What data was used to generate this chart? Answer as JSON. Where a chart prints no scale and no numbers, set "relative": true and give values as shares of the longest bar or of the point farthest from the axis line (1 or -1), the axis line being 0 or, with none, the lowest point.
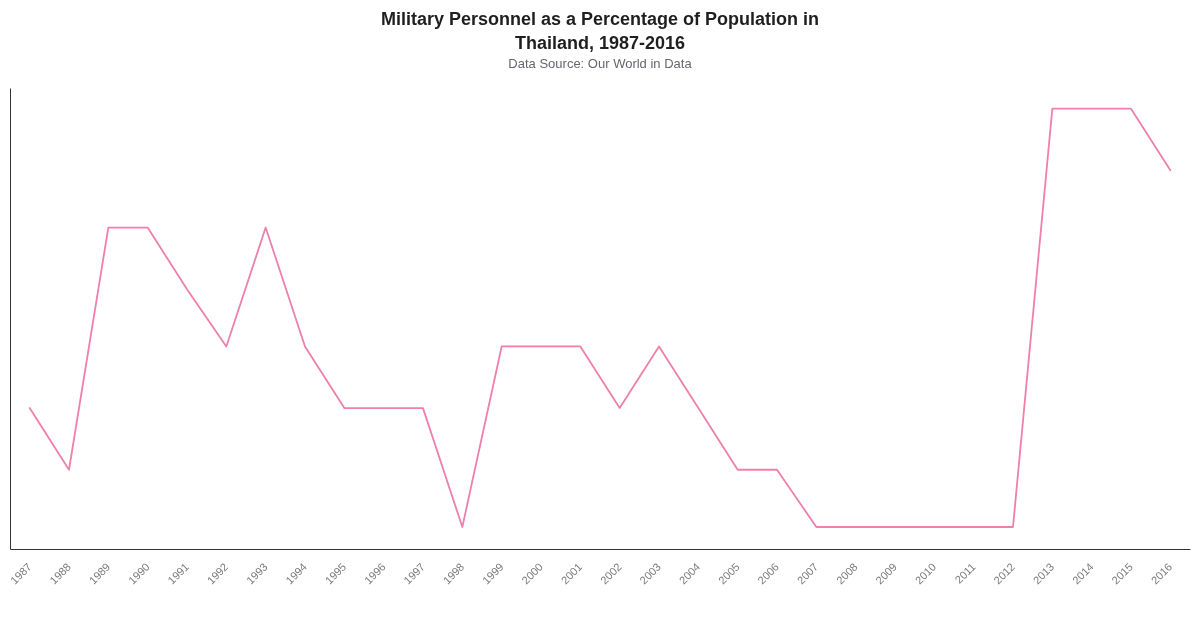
{
  "chart_data": {
    "type": "line",
    "title": "Military Personnel as a Percentage of Population in Thailand, 1987-2016",
    "subtitle": "Data Source: Our World in Data",
    "categories": [
      "1987",
      "1988",
      "1989",
      "1990",
      "1991",
      "1992",
      "1993",
      "1994",
      "1995",
      "1996",
      "1997",
      "1998",
      "1999",
      "2000",
      "2001",
      "2002",
      "2003",
      "2004",
      "2005",
      "2006",
      "2007",
      "2008",
      "2009",
      "2010",
      "2011",
      "2012",
      "2013",
      "2014",
      "2015",
      "2016"
    ],
    "relative": true,
    "series": [
      {
        "color": "#ef7fab",
        "values": [
          0.32,
          0.18,
          0.73,
          0.73,
          0.59,
          0.46,
          0.73,
          0.46,
          0.32,
          0.32,
          0.32,
          0.05,
          0.46,
          0.46,
          0.46,
          0.32,
          0.46,
          0.32,
          0.18,
          0.18,
          0.05,
          0.05,
          0.05,
          0.05,
          0.05,
          0.05,
          1,
          1,
          1,
          0.86
        ]
      }
    ]
  }
}
